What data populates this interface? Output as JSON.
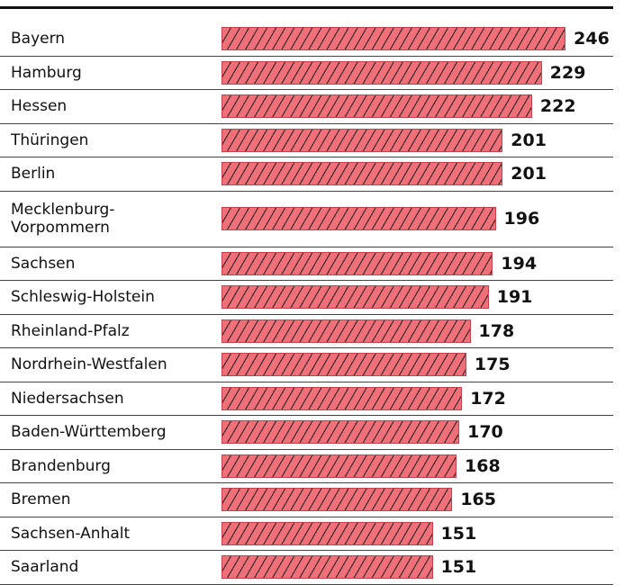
{
  "chart_data": {
    "type": "bar",
    "orientation": "horizontal",
    "categories": [
      "Bayern",
      "Hamburg",
      "Hessen",
      "Thüringen",
      "Berlin",
      "Mecklenburg-\nVorpommern",
      "Sachsen",
      "Schleswig-Holstein",
      "Rheinland-Pfalz",
      "Nordrhein-Westfalen",
      "Niedersachsen",
      "Baden-Württemberg",
      "Brandenburg",
      "Bremen",
      "Sachsen-Anhalt",
      "Saarland"
    ],
    "values": [
      246,
      229,
      222,
      201,
      201,
      196,
      194,
      191,
      178,
      175,
      172,
      170,
      168,
      165,
      151,
      151
    ],
    "color": "#f0707a",
    "hatch_color": "#3a2a2c",
    "xlim": [
      0,
      280
    ]
  }
}
